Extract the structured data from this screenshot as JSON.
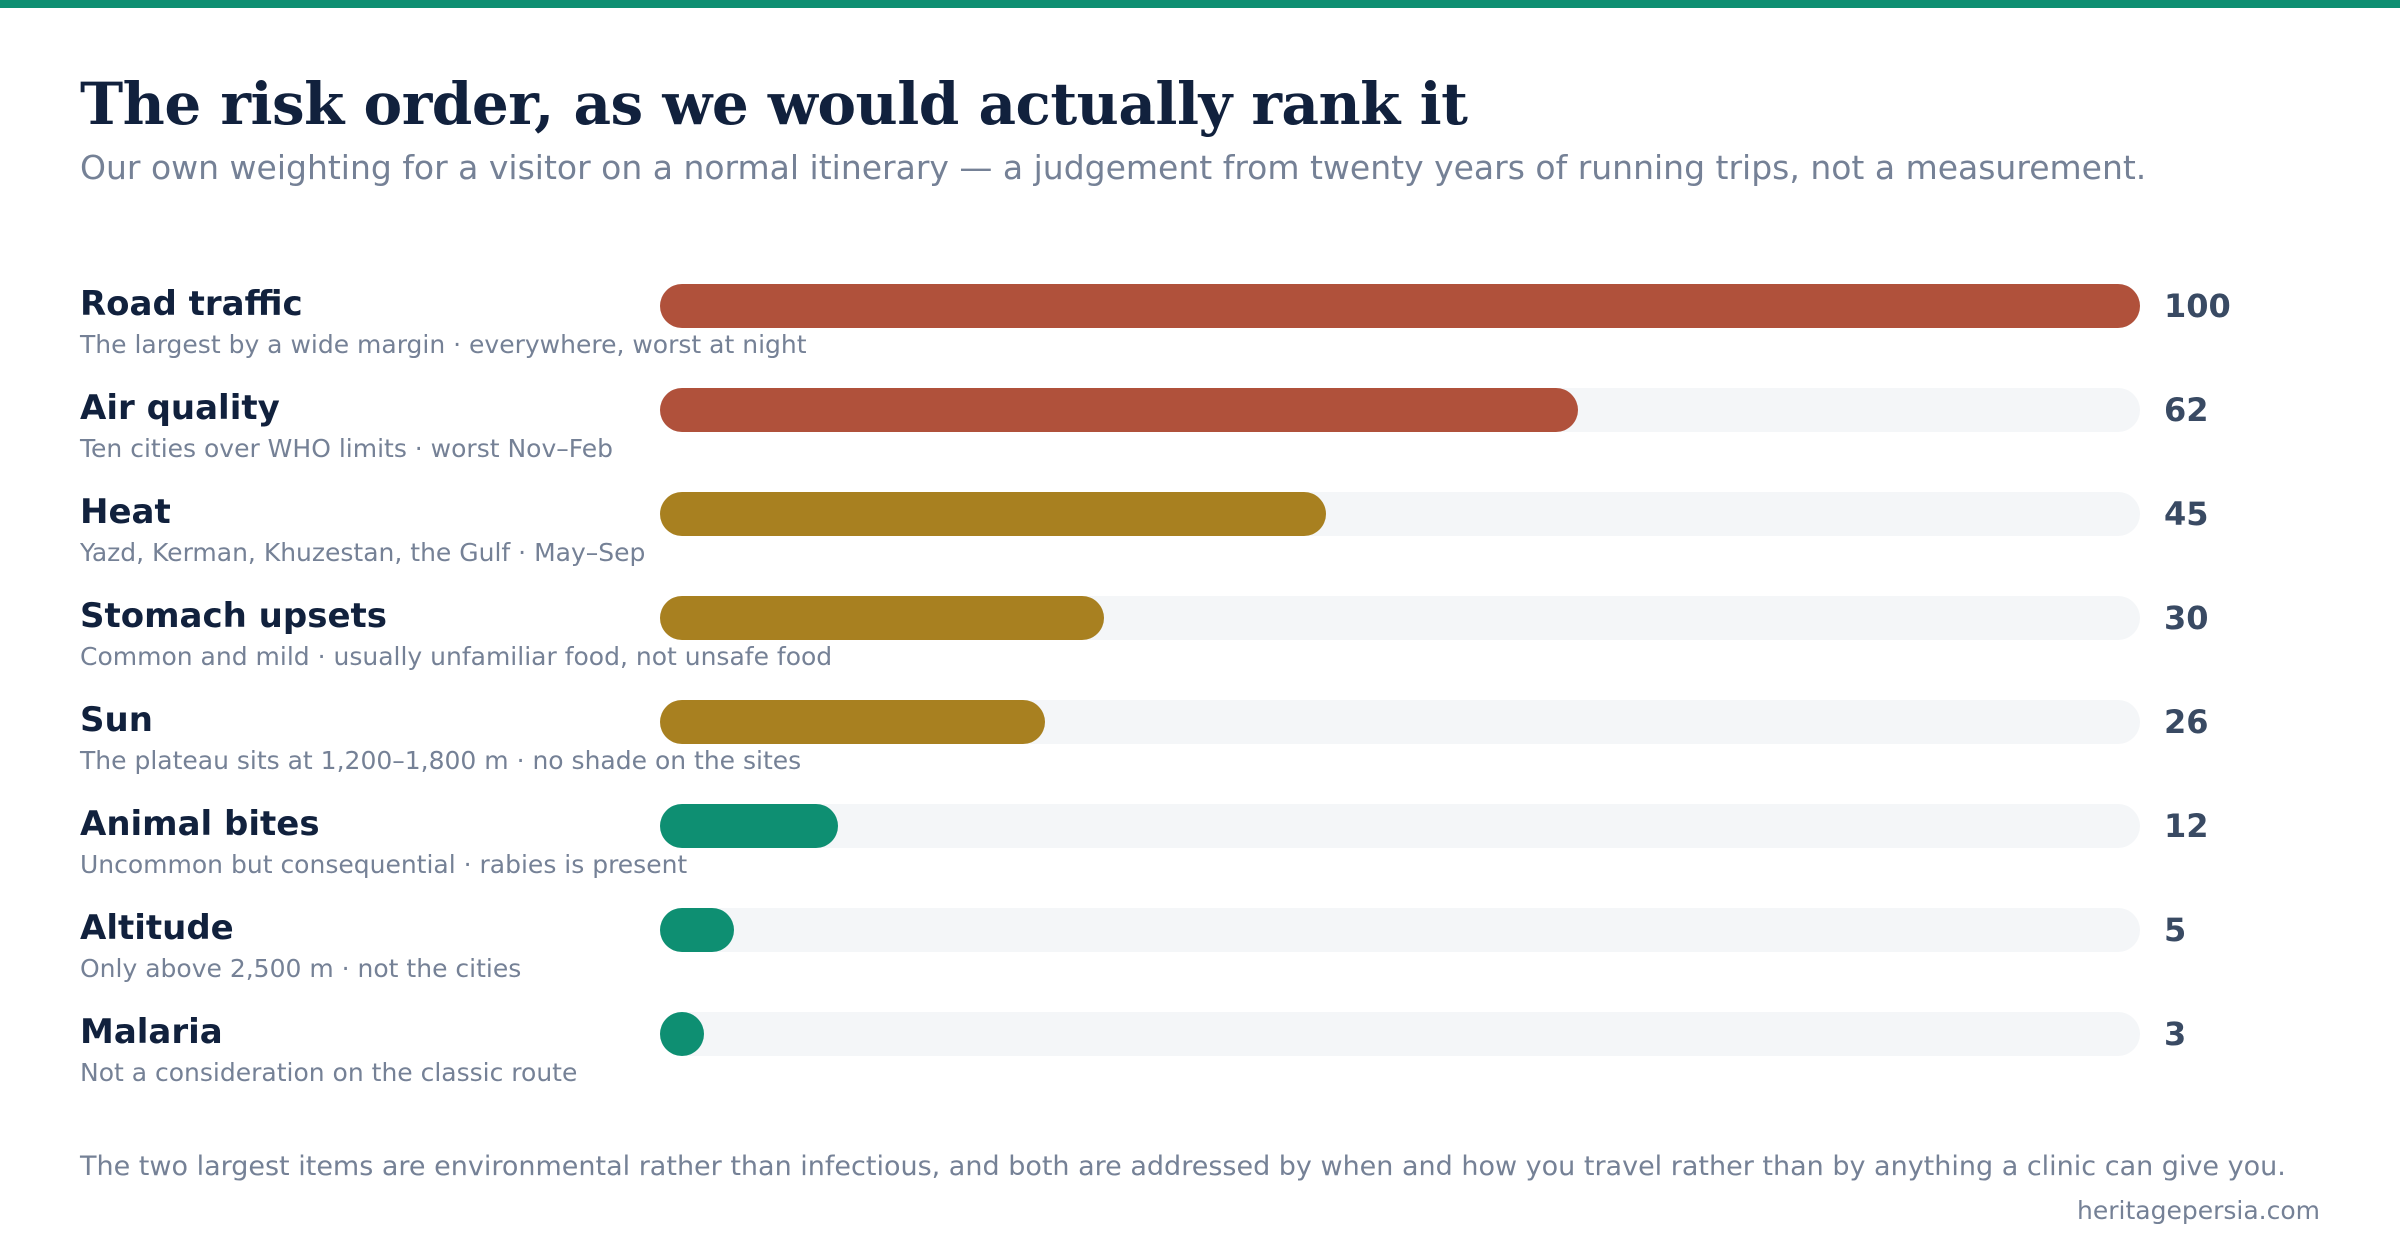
{
  "colors": {
    "accent": "#0e8f72",
    "high": "#b0513b",
    "medium": "#a88020",
    "low": "#0e8f72",
    "track": "#f4f6f8"
  },
  "chart_data": {
    "type": "bar",
    "orientation": "horizontal",
    "title": "The risk order, as we would actually rank it",
    "subtitle": "Our own weighting for a visitor on a normal itinerary — a judgement from twenty years of running trips, not a measurement.",
    "xlim": [
      0,
      100
    ],
    "grid": false,
    "categories": [
      "Road traffic",
      "Air quality",
      "Heat",
      "Stomach upsets",
      "Sun",
      "Animal bites",
      "Altitude",
      "Malaria"
    ],
    "values": [
      100,
      62,
      45,
      30,
      26,
      12,
      5,
      3
    ],
    "notes": [
      "The largest by a wide margin · everywhere, worst at night",
      "Ten cities over WHO limits · worst Nov–Feb",
      "Yazd, Kerman, Khuzestan, the Gulf · May–Sep",
      "Common and mild · usually unfamiliar food, not unsafe food",
      "The plateau sits at 1,200–1,800 m · no shade on the sites",
      "Uncommon but consequential · rabies is present",
      "Only above 2,500 m · not the cities",
      "Not a consideration on the classic route"
    ],
    "bar_colors": [
      "#b0513b",
      "#b0513b",
      "#a88020",
      "#a88020",
      "#a88020",
      "#0e8f72",
      "#0e8f72",
      "#0e8f72"
    ],
    "data_labels": [
      "100",
      "62",
      "45",
      "30",
      "26",
      "12",
      "5",
      "3"
    ]
  },
  "footnote": "The two largest items are environmental rather than infectious, and both are addressed by when and how you travel rather than by anything a clinic can give you.",
  "source": "heritagepersia.com"
}
